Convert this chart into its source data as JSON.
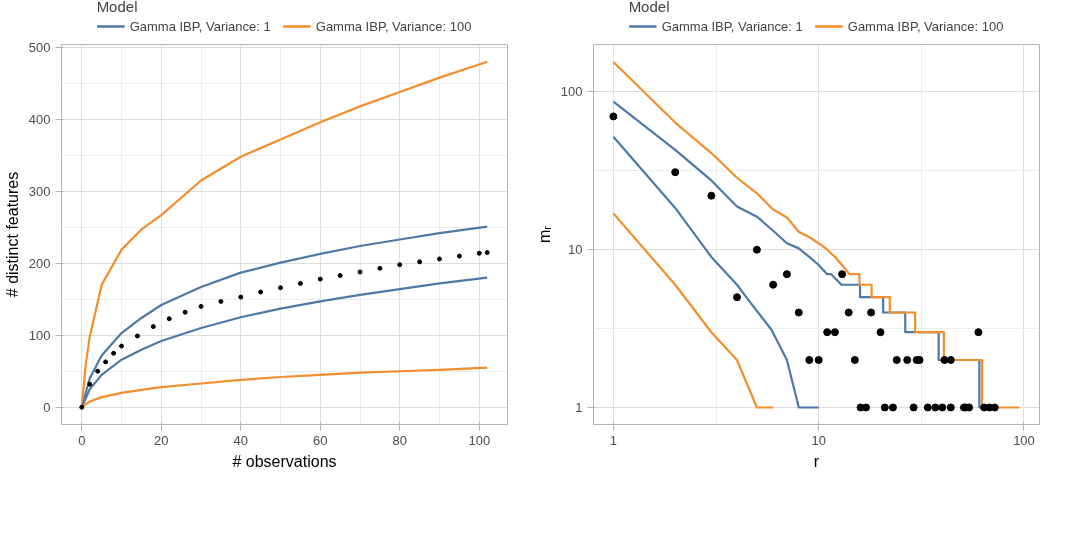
{
  "chart_data": [
    {
      "type": "line",
      "xlabel": "# observations",
      "ylabel": "# distinct features",
      "legend_title": "Model",
      "legend": "top",
      "grid": true,
      "xlim": [
        -5.1,
        107.1
      ],
      "ylim": [
        -24,
        504
      ],
      "xticks": [
        0,
        20,
        40,
        60,
        80,
        100
      ],
      "yticks": [
        0,
        100,
        200,
        300,
        400,
        500
      ],
      "series": [
        {
          "name": "Gamma IBP, Variance: 1",
          "color": "#4e79a7",
          "x": [
            0,
            2,
            5,
            10,
            15,
            20,
            30,
            40,
            50,
            60,
            70,
            80,
            90,
            102
          ],
          "values": [
            0,
            40,
            72,
            103,
            124,
            142,
            167,
            187,
            201,
            213,
            224,
            233,
            242,
            251
          ]
        },
        {
          "name": "Gamma IBP, Variance: 100",
          "color": "#f28e2b",
          "x": [
            0,
            1,
            2,
            5,
            10,
            15,
            20,
            30,
            40,
            50,
            60,
            70,
            80,
            90,
            102
          ],
          "values": [
            0,
            60,
            98,
            170,
            219,
            247,
            267,
            315,
            348,
            372,
            396,
            418,
            438,
            458,
            480
          ]
        },
        {
          "color": "#4e79a7",
          "x": [
            0,
            2,
            5,
            10,
            15,
            20,
            30,
            40,
            50,
            60,
            70,
            80,
            90,
            102
          ],
          "values": [
            0,
            25,
            45,
            66,
            80,
            92,
            110,
            125,
            137,
            147,
            156,
            164,
            172,
            180
          ]
        },
        {
          "color": "#f28e2b",
          "x": [
            0,
            2,
            5,
            10,
            15,
            20,
            30,
            40,
            50,
            60,
            70,
            80,
            90,
            102
          ],
          "values": [
            0,
            8,
            14,
            20,
            24,
            28,
            33,
            38,
            42,
            45,
            48,
            50,
            52,
            55
          ]
        },
        {
          "type": "scatter",
          "marker": "circle",
          "color": "#000000",
          "x": [
            0,
            2,
            4,
            6,
            8,
            10,
            14,
            18,
            22,
            26,
            30,
            35,
            40,
            45,
            50,
            55,
            60,
            65,
            70,
            75,
            80,
            85,
            90,
            95,
            100,
            102
          ],
          "values": [
            0,
            32,
            50,
            63,
            75,
            85,
            99,
            112,
            123,
            132,
            140,
            147,
            153,
            160,
            166,
            172,
            178,
            183,
            188,
            193,
            198,
            202,
            206,
            210,
            214,
            215
          ]
        }
      ]
    },
    {
      "type": "line",
      "xlabel": "r",
      "ylabel": "mᵣ",
      "legend_title": "Model",
      "legend": "top",
      "grid": true,
      "log": "xy",
      "xlim": [
        0.8,
        119
      ],
      "ylim": [
        0.78,
        200
      ],
      "xticks": [
        1,
        10,
        100
      ],
      "yticks": [
        1,
        10,
        100
      ],
      "series": [
        {
          "name": "Gamma IBP, Variance: 1",
          "color": "#4e79a7",
          "x": [
            1,
            2,
            3,
            4,
            5,
            6,
            7,
            8,
            9,
            10,
            11,
            11.5,
            12.9,
            15.9,
            15.9,
            20.6,
            20.6,
            26.4,
            26.4,
            38.4,
            38.4,
            60.6,
            60.6,
            67.6
          ],
          "values": [
            87,
            43,
            27.5,
            18.8,
            16.2,
            13.2,
            11,
            10.2,
            9,
            8,
            7,
            7,
            6,
            6,
            5,
            5,
            4,
            4,
            3,
            3,
            2,
            2,
            1,
            1
          ]
        },
        {
          "name": "Gamma IBP, Variance: 100",
          "color": "#f28e2b",
          "x": [
            1,
            2,
            3,
            4,
            5,
            6,
            7,
            8,
            9,
            10,
            11,
            12,
            13,
            14.1,
            15.8,
            15.8,
            18.1,
            18.1,
            22.2,
            22.2,
            29.5,
            29.5,
            40.7,
            40.7,
            62.4,
            62.4,
            95
          ],
          "values": [
            155,
            64,
            41,
            28.6,
            22.8,
            18,
            16,
            13,
            12,
            11,
            10,
            9,
            8,
            7,
            7,
            6,
            6,
            5,
            5,
            4,
            4,
            3,
            3,
            2,
            2,
            1,
            1
          ]
        },
        {
          "color": "#4e79a7",
          "x": [
            1,
            2,
            3,
            4,
            4.6,
            5.9,
            7,
            8,
            10
          ],
          "values": [
            52,
            18.4,
            9,
            6,
            4.7,
            3.1,
            2,
            1,
            1
          ]
        },
        {
          "color": "#f28e2b",
          "x": [
            1,
            2,
            3,
            4,
            5,
            6
          ],
          "values": [
            17,
            6,
            3,
            2,
            1,
            1
          ]
        },
        {
          "type": "scatter",
          "marker": "circle",
          "color": "#000000",
          "x": [
            1,
            2,
            3,
            4,
            5,
            6,
            7,
            8,
            9,
            10,
            11,
            12,
            13,
            14,
            15,
            16,
            17,
            18,
            20,
            21,
            23,
            24,
            27,
            29,
            30,
            31,
            34,
            37,
            40,
            41,
            44,
            44,
            51,
            52,
            54,
            60,
            64,
            68,
            72
          ],
          "values": [
            70,
            31,
            22,
            5,
            10,
            6,
            7,
            4,
            2,
            2,
            3,
            3,
            7,
            4,
            2,
            1,
            1,
            4,
            3,
            1,
            1,
            2,
            2,
            1,
            2,
            2,
            1,
            1,
            1,
            2,
            2,
            1,
            1,
            1,
            1,
            3,
            1,
            1,
            1
          ]
        }
      ]
    }
  ]
}
